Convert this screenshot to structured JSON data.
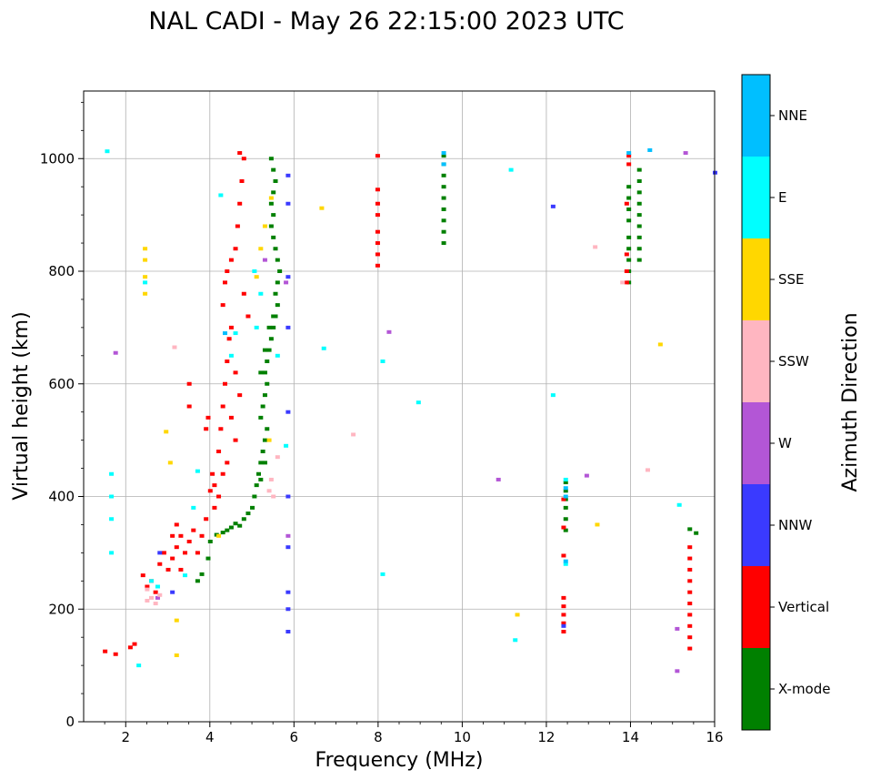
{
  "chart_data": {
    "type": "scatter",
    "title": "NAL CADI - May 26 22:15:00 2023 UTC",
    "xlabel": "Frequency (MHz)",
    "ylabel": "Virtual height (km)",
    "xlim": [
      1,
      16
    ],
    "ylim": [
      0,
      1120
    ],
    "xticks": [
      2,
      4,
      6,
      8,
      10,
      12,
      14,
      16
    ],
    "yticks": [
      0,
      200,
      400,
      600,
      800,
      1000
    ],
    "grid": true,
    "colorbar": {
      "label": "Azimuth Direction",
      "categories": [
        "X-mode",
        "Vertical",
        "NNW",
        "W",
        "SSW",
        "SSE",
        "E",
        "NNE"
      ],
      "colors": [
        "#008000",
        "#ff0000",
        "#3a3aff",
        "#b356d6",
        "#ffb6c1",
        "#ffd700",
        "#00ffff",
        "#00bfff"
      ]
    },
    "series": [
      {
        "name": "X-mode",
        "points": [
          [
            3.7,
            250
          ],
          [
            3.8,
            262
          ],
          [
            3.95,
            290
          ],
          [
            4.0,
            320
          ],
          [
            4.15,
            332
          ],
          [
            4.3,
            336
          ],
          [
            4.4,
            340
          ],
          [
            4.5,
            345
          ],
          [
            4.6,
            352
          ],
          [
            4.7,
            348
          ],
          [
            4.8,
            360
          ],
          [
            4.9,
            370
          ],
          [
            5.0,
            380
          ],
          [
            5.05,
            400
          ],
          [
            5.1,
            420
          ],
          [
            5.15,
            440
          ],
          [
            5.2,
            460
          ],
          [
            5.25,
            480
          ],
          [
            5.3,
            500
          ],
          [
            5.35,
            520
          ],
          [
            5.2,
            540
          ],
          [
            5.25,
            560
          ],
          [
            5.3,
            580
          ],
          [
            5.35,
            600
          ],
          [
            5.3,
            620
          ],
          [
            5.35,
            640
          ],
          [
            5.4,
            660
          ],
          [
            5.45,
            680
          ],
          [
            5.5,
            700
          ],
          [
            5.55,
            720
          ],
          [
            5.6,
            740
          ],
          [
            5.55,
            760
          ],
          [
            5.6,
            780
          ],
          [
            5.65,
            800
          ],
          [
            5.6,
            820
          ],
          [
            5.55,
            840
          ],
          [
            5.5,
            860
          ],
          [
            5.45,
            880
          ],
          [
            5.5,
            900
          ],
          [
            5.45,
            920
          ],
          [
            5.5,
            940
          ],
          [
            5.55,
            960
          ],
          [
            5.5,
            980
          ],
          [
            5.45,
            1000
          ],
          [
            5.2,
            620
          ],
          [
            5.3,
            660
          ],
          [
            5.4,
            700
          ],
          [
            5.5,
            720
          ],
          [
            5.3,
            460
          ],
          [
            5.2,
            430
          ],
          [
            9.55,
            850
          ],
          [
            9.55,
            870
          ],
          [
            9.55,
            890
          ],
          [
            9.55,
            910
          ],
          [
            9.55,
            930
          ],
          [
            9.55,
            950
          ],
          [
            9.55,
            970
          ],
          [
            9.55,
            990
          ],
          [
            9.55,
            1005
          ],
          [
            13.95,
            780
          ],
          [
            13.95,
            800
          ],
          [
            13.95,
            820
          ],
          [
            13.95,
            840
          ],
          [
            13.95,
            860
          ],
          [
            13.95,
            890
          ],
          [
            13.95,
            910
          ],
          [
            13.95,
            930
          ],
          [
            13.95,
            950
          ],
          [
            14.2,
            820
          ],
          [
            14.2,
            840
          ],
          [
            14.2,
            860
          ],
          [
            14.2,
            880
          ],
          [
            14.2,
            900
          ],
          [
            14.2,
            920
          ],
          [
            14.2,
            940
          ],
          [
            14.2,
            960
          ],
          [
            14.2,
            980
          ],
          [
            12.45,
            340
          ],
          [
            12.45,
            360
          ],
          [
            12.45,
            380
          ],
          [
            12.45,
            395
          ],
          [
            12.45,
            410
          ],
          [
            12.45,
            425
          ],
          [
            15.4,
            342
          ],
          [
            15.55,
            335
          ]
        ]
      },
      {
        "name": "Vertical",
        "points": [
          [
            1.5,
            125
          ],
          [
            1.75,
            120
          ],
          [
            2.1,
            132
          ],
          [
            2.2,
            138
          ],
          [
            2.4,
            260
          ],
          [
            2.5,
            240
          ],
          [
            2.6,
            250
          ],
          [
            2.7,
            230
          ],
          [
            2.8,
            280
          ],
          [
            2.9,
            300
          ],
          [
            3.0,
            270
          ],
          [
            3.1,
            290
          ],
          [
            3.2,
            310
          ],
          [
            3.3,
            330
          ],
          [
            3.4,
            300
          ],
          [
            3.5,
            320
          ],
          [
            3.6,
            340
          ],
          [
            3.7,
            300
          ],
          [
            3.8,
            330
          ],
          [
            3.9,
            360
          ],
          [
            4.0,
            410
          ],
          [
            4.05,
            440
          ],
          [
            4.1,
            420
          ],
          [
            3.95,
            540
          ],
          [
            3.5,
            560
          ],
          [
            3.5,
            600
          ],
          [
            3.9,
            520
          ],
          [
            4.2,
            480
          ],
          [
            4.25,
            520
          ],
          [
            4.3,
            560
          ],
          [
            4.35,
            600
          ],
          [
            4.4,
            640
          ],
          [
            4.45,
            680
          ],
          [
            4.5,
            700
          ],
          [
            4.3,
            740
          ],
          [
            4.35,
            780
          ],
          [
            4.4,
            800
          ],
          [
            4.5,
            820
          ],
          [
            4.6,
            840
          ],
          [
            4.65,
            880
          ],
          [
            4.7,
            920
          ],
          [
            4.75,
            960
          ],
          [
            4.8,
            1000
          ],
          [
            4.7,
            1010
          ],
          [
            4.8,
            760
          ],
          [
            4.9,
            720
          ],
          [
            4.6,
            620
          ],
          [
            4.7,
            580
          ],
          [
            4.5,
            540
          ],
          [
            4.6,
            500
          ],
          [
            4.4,
            460
          ],
          [
            4.3,
            440
          ],
          [
            4.2,
            400
          ],
          [
            4.1,
            380
          ],
          [
            3.3,
            270
          ],
          [
            3.2,
            350
          ],
          [
            3.1,
            330
          ],
          [
            7.98,
            810
          ],
          [
            7.98,
            830
          ],
          [
            7.98,
            850
          ],
          [
            7.98,
            870
          ],
          [
            7.98,
            900
          ],
          [
            7.98,
            920
          ],
          [
            7.98,
            945
          ],
          [
            7.98,
            1005
          ],
          [
            13.9,
            780
          ],
          [
            13.9,
            800
          ],
          [
            13.9,
            830
          ],
          [
            13.9,
            920
          ],
          [
            13.95,
            990
          ],
          [
            13.95,
            1005
          ],
          [
            12.4,
            160
          ],
          [
            12.4,
            175
          ],
          [
            12.4,
            190
          ],
          [
            12.4,
            205
          ],
          [
            12.4,
            220
          ],
          [
            12.4,
            295
          ],
          [
            12.4,
            345
          ],
          [
            12.4,
            395
          ],
          [
            15.4,
            130
          ],
          [
            15.4,
            150
          ],
          [
            15.4,
            170
          ],
          [
            15.4,
            190
          ],
          [
            15.4,
            210
          ],
          [
            15.4,
            230
          ],
          [
            15.4,
            250
          ],
          [
            15.4,
            270
          ],
          [
            15.4,
            290
          ],
          [
            15.4,
            310
          ]
        ]
      },
      {
        "name": "NNW",
        "points": [
          [
            5.85,
            160
          ],
          [
            5.85,
            200
          ],
          [
            5.85,
            230
          ],
          [
            5.85,
            310
          ],
          [
            5.85,
            400
          ],
          [
            5.85,
            550
          ],
          [
            5.85,
            700
          ],
          [
            5.85,
            790
          ],
          [
            5.85,
            920
          ],
          [
            5.85,
            970
          ],
          [
            2.8,
            300
          ],
          [
            3.1,
            230
          ],
          [
            12.15,
            915
          ],
          [
            16.0,
            975
          ],
          [
            12.4,
            170
          ]
        ]
      },
      {
        "name": "W",
        "points": [
          [
            15.1,
            90
          ],
          [
            15.1,
            165
          ],
          [
            15.3,
            1010
          ],
          [
            10.85,
            430
          ],
          [
            12.95,
            437
          ],
          [
            8.25,
            692
          ],
          [
            5.85,
            330
          ],
          [
            5.8,
            780
          ],
          [
            5.3,
            820
          ],
          [
            2.75,
            220
          ],
          [
            1.75,
            655
          ]
        ]
      },
      {
        "name": "SSW",
        "points": [
          [
            2.5,
            215
          ],
          [
            2.6,
            220
          ],
          [
            2.7,
            210
          ],
          [
            2.8,
            225
          ],
          [
            2.5,
            235
          ],
          [
            5.5,
            400
          ],
          [
            5.4,
            410
          ],
          [
            5.45,
            430
          ],
          [
            5.6,
            470
          ],
          [
            13.15,
            843
          ],
          [
            13.8,
            780
          ],
          [
            14.4,
            447
          ],
          [
            7.4,
            510
          ],
          [
            3.15,
            665
          ]
        ]
      },
      {
        "name": "SSE",
        "points": [
          [
            2.45,
            760
          ],
          [
            2.45,
            790
          ],
          [
            2.45,
            820
          ],
          [
            2.45,
            840
          ],
          [
            5.1,
            790
          ],
          [
            5.2,
            840
          ],
          [
            5.3,
            880
          ],
          [
            5.45,
            930
          ],
          [
            5.4,
            500
          ],
          [
            4.2,
            330
          ],
          [
            3.2,
            180
          ],
          [
            3.2,
            118
          ],
          [
            3.05,
            460
          ],
          [
            6.65,
            912
          ],
          [
            11.3,
            190
          ],
          [
            13.2,
            350
          ],
          [
            14.7,
            670
          ],
          [
            2.95,
            515
          ]
        ]
      },
      {
        "name": "E",
        "points": [
          [
            1.55,
            1013
          ],
          [
            1.65,
            400
          ],
          [
            1.65,
            300
          ],
          [
            1.65,
            440
          ],
          [
            1.65,
            360
          ],
          [
            2.3,
            100
          ],
          [
            2.6,
            250
          ],
          [
            2.75,
            240
          ],
          [
            3.6,
            380
          ],
          [
            3.7,
            445
          ],
          [
            4.5,
            650
          ],
          [
            4.6,
            690
          ],
          [
            5.05,
            800
          ],
          [
            5.2,
            760
          ],
          [
            5.1,
            700
          ],
          [
            5.6,
            650
          ],
          [
            5.8,
            490
          ],
          [
            6.7,
            663
          ],
          [
            8.1,
            640
          ],
          [
            8.1,
            262
          ],
          [
            8.95,
            567
          ],
          [
            11.15,
            980
          ],
          [
            11.25,
            145
          ],
          [
            12.15,
            580
          ],
          [
            12.45,
            280
          ],
          [
            12.45,
            430
          ],
          [
            15.15,
            385
          ],
          [
            4.25,
            935
          ],
          [
            3.4,
            260
          ],
          [
            2.45,
            780
          ]
        ]
      },
      {
        "name": "NNE",
        "points": [
          [
            9.55,
            1010
          ],
          [
            9.55,
            990
          ],
          [
            13.95,
            1010
          ],
          [
            14.45,
            1015
          ],
          [
            12.45,
            285
          ],
          [
            12.45,
            415
          ],
          [
            12.45,
            400
          ],
          [
            4.35,
            690
          ]
        ]
      }
    ]
  }
}
